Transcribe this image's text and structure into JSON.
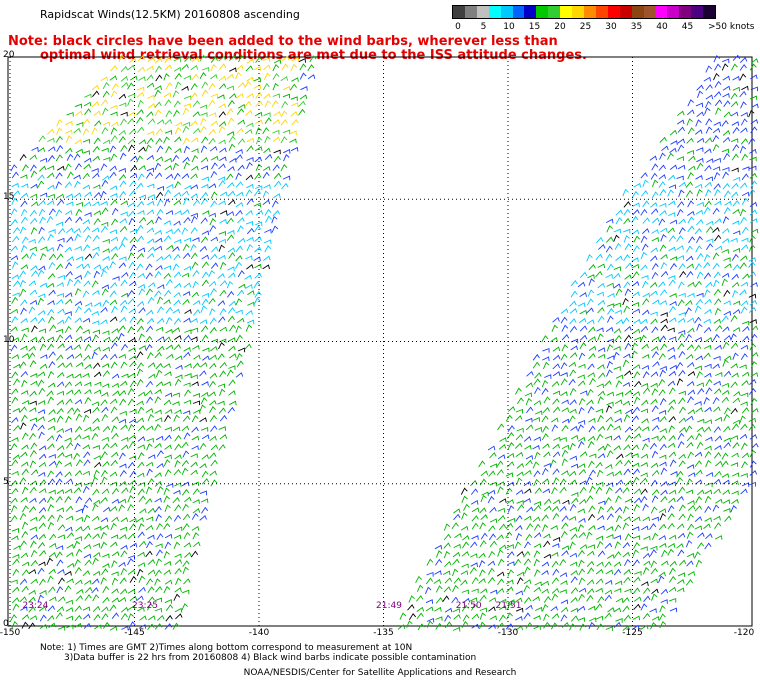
{
  "header": {
    "title": "Rapidscat Winds(12.5KM) 20160808 ascending",
    "note_line1": "Note: black circles have been added to the wind barbs, wherever less than",
    "note_line2": "optimal wind retrieval conditions are met due to the ISS attitude changes."
  },
  "colorbar": {
    "unit": ">50 knots",
    "labels": [
      "0",
      "5",
      "10",
      "15",
      "20",
      "25",
      "30",
      "35",
      "40",
      "45"
    ],
    "colors": [
      "#404040",
      "#808080",
      "#c0c0c0",
      "#00ffff",
      "#00c8ff",
      "#0064ff",
      "#0000c8",
      "#00c800",
      "#32cd32",
      "#ffff00",
      "#ffd700",
      "#ff8c00",
      "#ff4500",
      "#ff0000",
      "#c80000",
      "#8b4513",
      "#a0522d",
      "#ff00ff",
      "#c800c8",
      "#800080",
      "#4b0082",
      "#1a0033"
    ]
  },
  "axes": {
    "y_labels": [
      {
        "text": "20",
        "value": 20
      },
      {
        "text": "15",
        "value": 15
      },
      {
        "text": "10",
        "value": 10
      },
      {
        "text": "5",
        "value": 5
      },
      {
        "text": "0",
        "value": 0
      }
    ],
    "x_labels": [
      {
        "text": "-150",
        "value": -150
      },
      {
        "text": "-145",
        "value": -145
      },
      {
        "text": "-140",
        "value": -140
      },
      {
        "text": "-135",
        "value": -135
      },
      {
        "text": "-130",
        "value": -130
      },
      {
        "text": "-125",
        "value": -125
      },
      {
        "text": "-120",
        "value": -120
      }
    ]
  },
  "time_labels": [
    {
      "text": "23:24",
      "lon": -149.5
    },
    {
      "text": "23:25",
      "lon": -145.1
    },
    {
      "text": "21:49",
      "lon": -135.3
    },
    {
      "text": "21:50",
      "lon": -132.1
    },
    {
      "text": "21:51",
      "lon": -130.5
    }
  ],
  "footer": {
    "note_line1": "Note: 1) Times are GMT 2)Times along bottom correspond to measurement at 10N",
    "note_line2": "3)Data buffer is 22 hrs from 20160808 4) Black wind barbs indicate possible contamination",
    "credit": "NOAA/NESDIS/Center for Satellite Applications and Research"
  }
}
